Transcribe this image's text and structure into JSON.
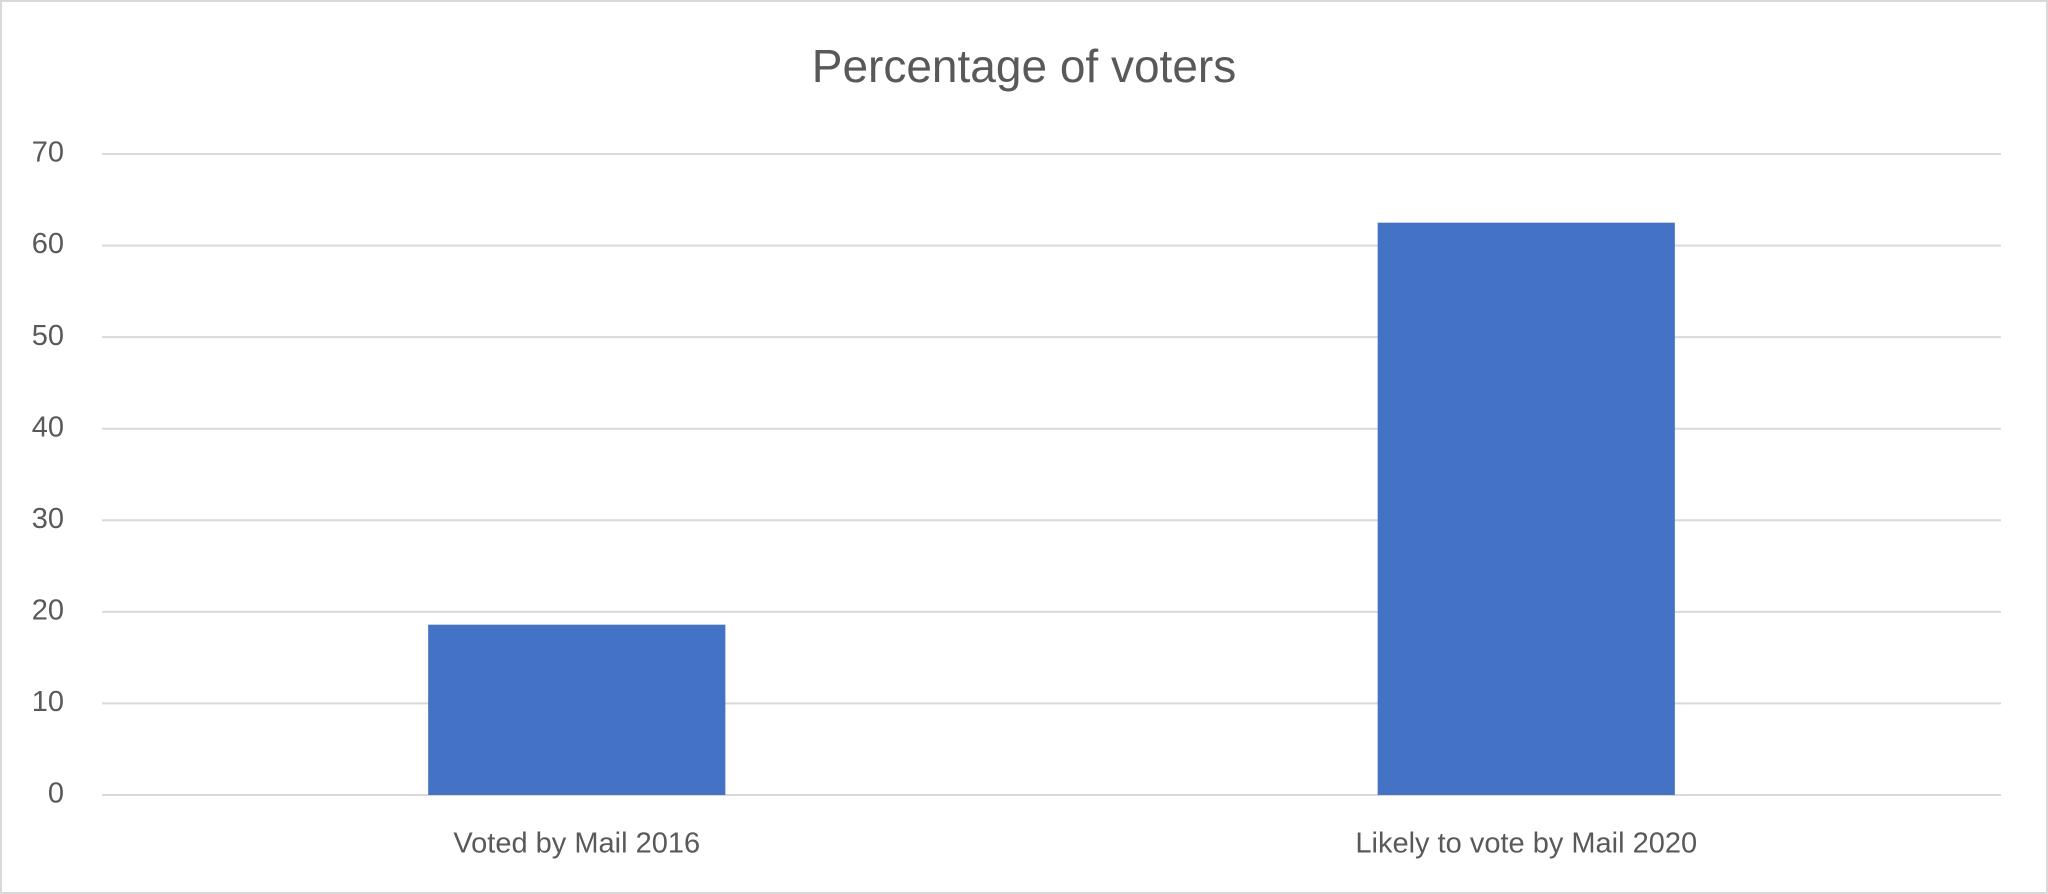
{
  "chart_data": {
    "type": "bar",
    "title": "Percentage of voters",
    "categories": [
      "Voted by Mail 2016",
      "Likely to vote by Mail 2020"
    ],
    "values": [
      18.6,
      62.5
    ],
    "color": "#4472c4",
    "ylim": [
      0,
      70
    ],
    "yticks": [
      0,
      10,
      20,
      30,
      40,
      50,
      60,
      70
    ],
    "grid": true
  }
}
